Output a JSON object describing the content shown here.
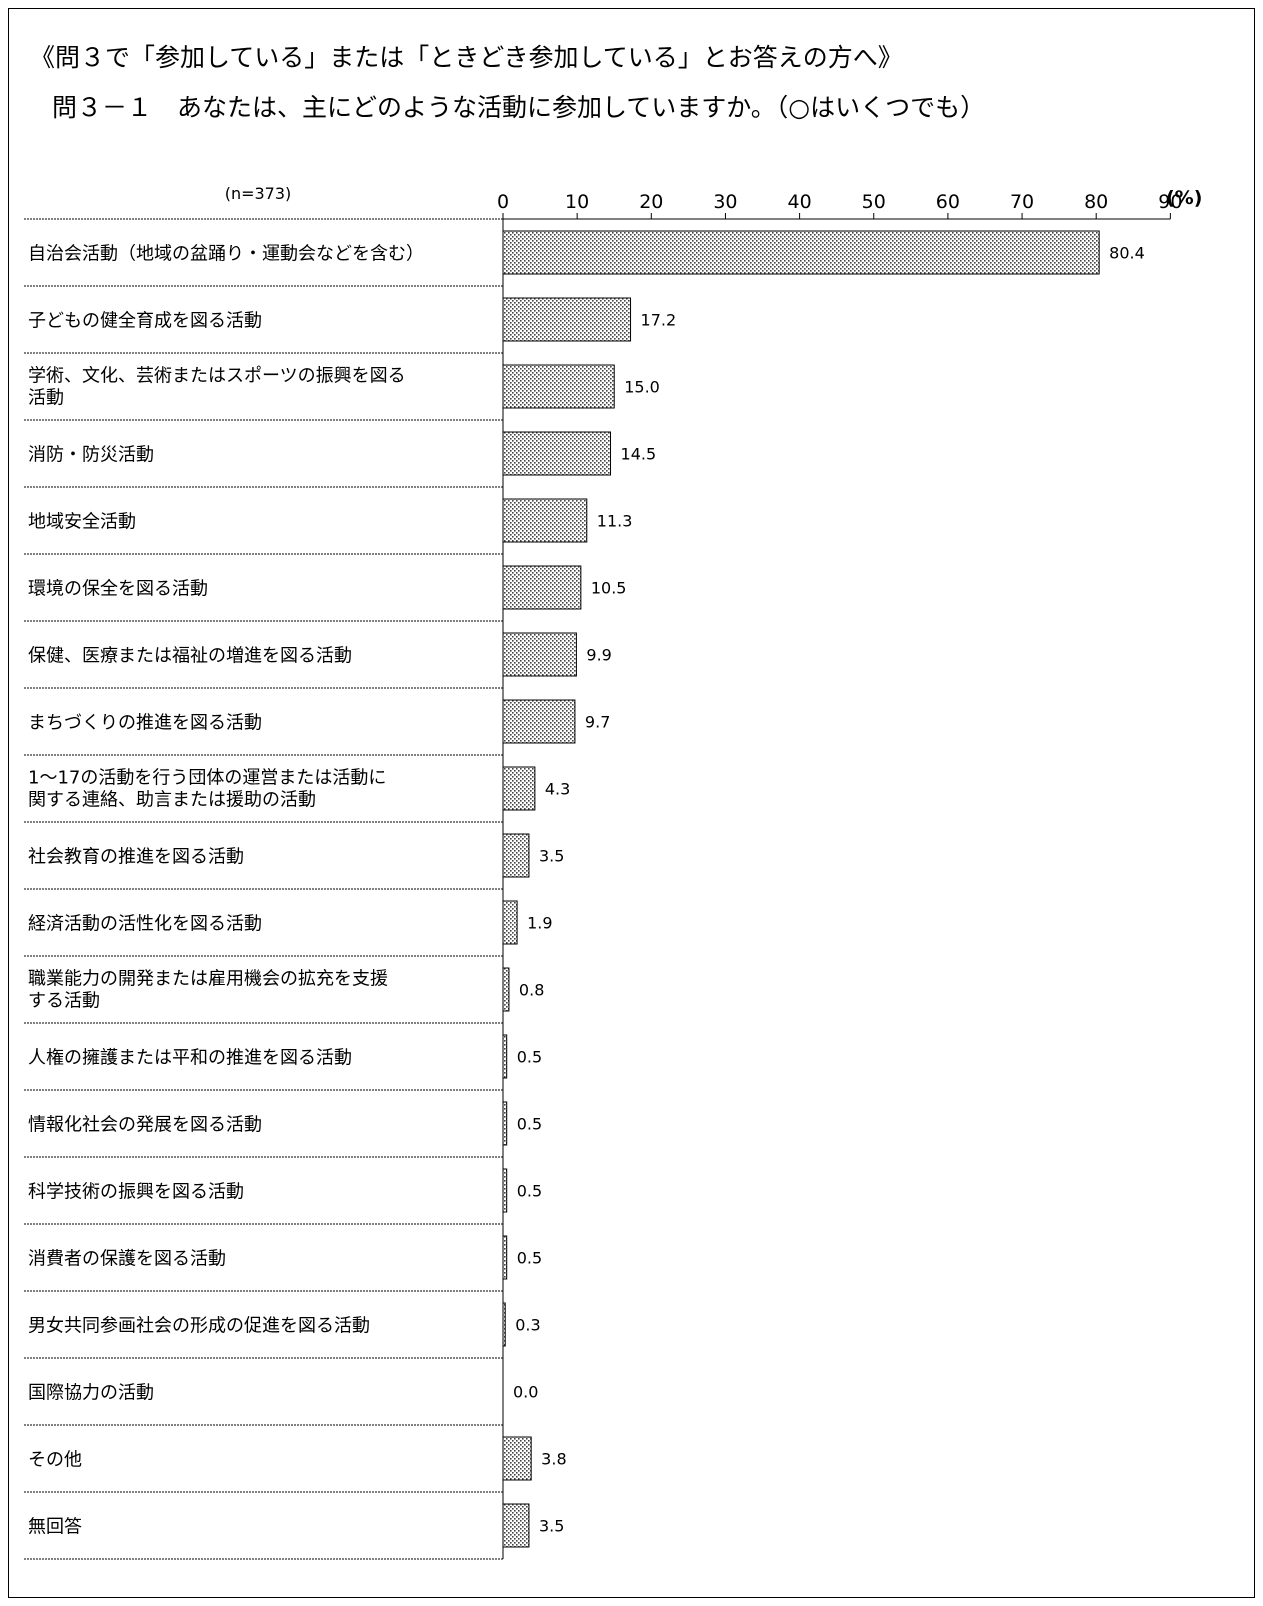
{
  "header": {
    "line1": "《問３で「参加している」または「ときどき参加している」とお答えの方へ》",
    "line2": "問３－１　あなたは、主にどのような活動に参加していますか。（○はいくつでも）"
  },
  "chart_data": {
    "type": "bar",
    "orientation": "horizontal",
    "sample_label": "(n=373)",
    "unit_label": "(%)",
    "xlim": [
      0,
      90
    ],
    "xticks": [
      "0",
      "10",
      "20",
      "30",
      "40",
      "50",
      "60",
      "70",
      "80",
      "90"
    ],
    "bar_pattern": "dotted",
    "categories": [
      "自治会活動（地域の盆踊り・運動会などを含む）",
      "子どもの健全育成を図る活動",
      "学術、文化、芸術またはスポーツの振興を図る\n活動",
      "消防・防災活動",
      "地域安全活動",
      "環境の保全を図る活動",
      "保健、医療または福祉の増進を図る活動",
      "まちづくりの推進を図る活動",
      "1～17の活動を行う団体の運営または活動に\n関する連絡、助言または援助の活動",
      "社会教育の推進を図る活動",
      "経済活動の活性化を図る活動",
      "職業能力の開発または雇用機会の拡充を支援\nする活動",
      "人権の擁護または平和の推進を図る活動",
      "情報化社会の発展を図る活動",
      "科学技術の振興を図る活動",
      "消費者の保護を図る活動",
      "男女共同参画社会の形成の促進を図る活動",
      "国際協力の活動",
      "その他",
      "無回答"
    ],
    "values": [
      80.4,
      17.2,
      15.0,
      14.5,
      11.3,
      10.5,
      9.9,
      9.7,
      4.3,
      3.5,
      1.9,
      0.8,
      0.5,
      0.5,
      0.5,
      0.5,
      0.3,
      0.0,
      3.8,
      3.5
    ],
    "value_labels": [
      "80.4",
      "17.2",
      "15.0",
      "14.5",
      "11.3",
      "10.5",
      "9.9",
      "9.7",
      "4.3",
      "3.5",
      "1.9",
      "0.8",
      "0.5",
      "0.5",
      "0.5",
      "0.5",
      "0.3",
      "0.0",
      "3.8",
      "3.5"
    ]
  }
}
